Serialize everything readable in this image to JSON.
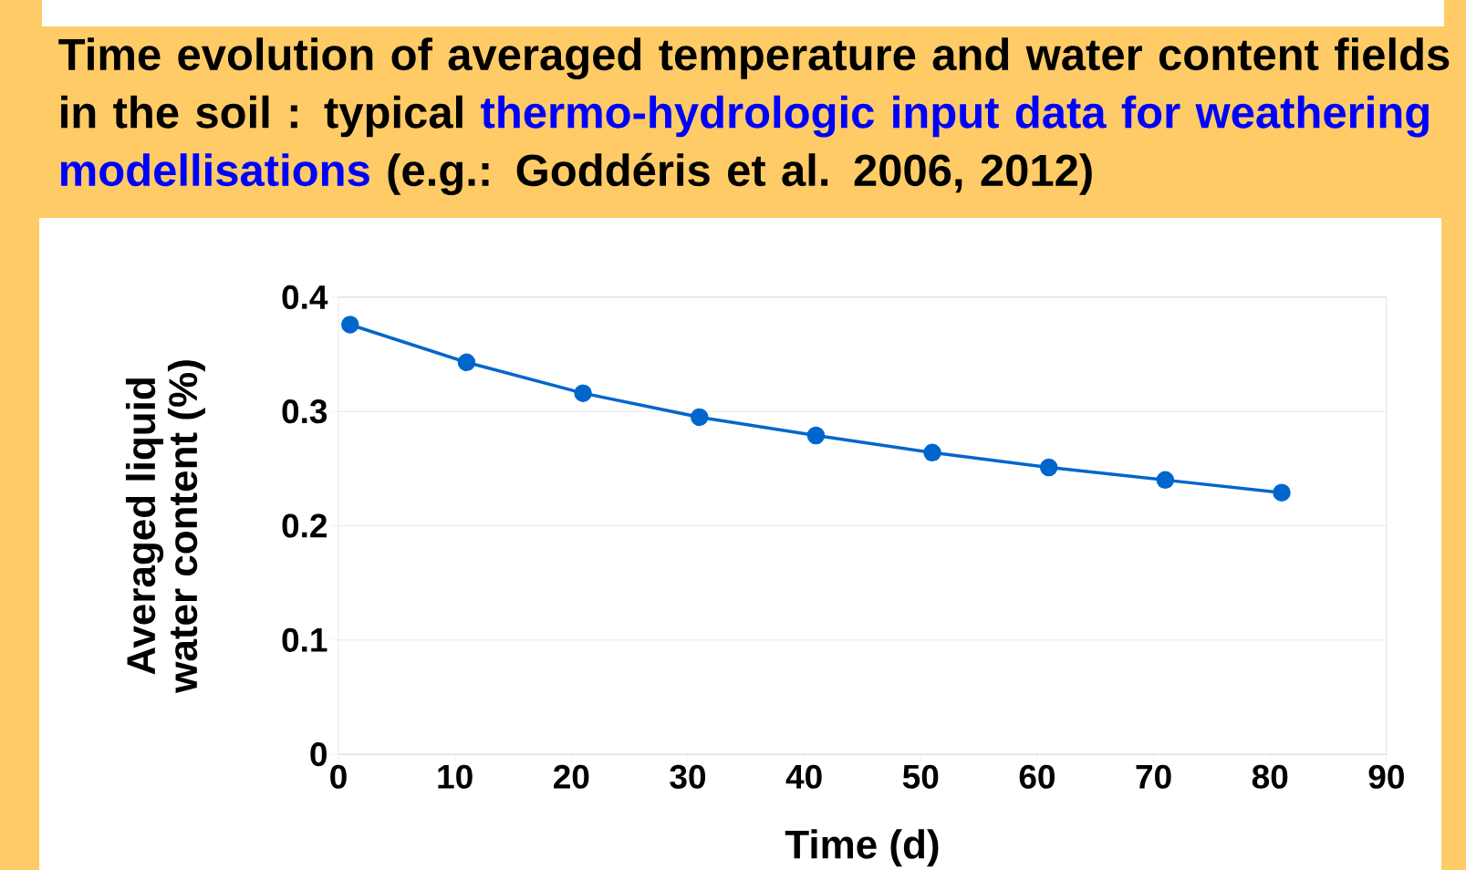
{
  "chart_data": {
    "type": "line",
    "title": "Time evolution of averaged temperature and water content fields in the soil : typical",
    "subtitle": "thermo-hydrologic input data for weathering modellisations",
    "annotations": [
      "(e.g.: Goddéris et al. 2006, 2012)"
    ],
    "xlabel": "Time (d)",
    "ylabel": "Averaged liquid water content (%)",
    "x": [
      1,
      11,
      21,
      31,
      41,
      51,
      61,
      71,
      81
    ],
    "series": [
      {
        "color": "#0066cc",
        "values": [
          0.376,
          0.343,
          0.316,
          0.295,
          0.279,
          0.264,
          0.251,
          0.24,
          0.229
        ]
      }
    ],
    "xlim": [
      0,
      90
    ],
    "xticks": [
      0,
      10,
      20,
      30,
      40,
      50,
      60,
      70,
      80,
      90
    ],
    "ylim": [
      0,
      0.4
    ],
    "yticks": [
      {
        "value": 0,
        "label": "0"
      },
      0.1,
      0.2,
      0.3,
      0.4
    ],
    "grid": "y",
    "marker": "circle",
    "line_style": "solid"
  }
}
